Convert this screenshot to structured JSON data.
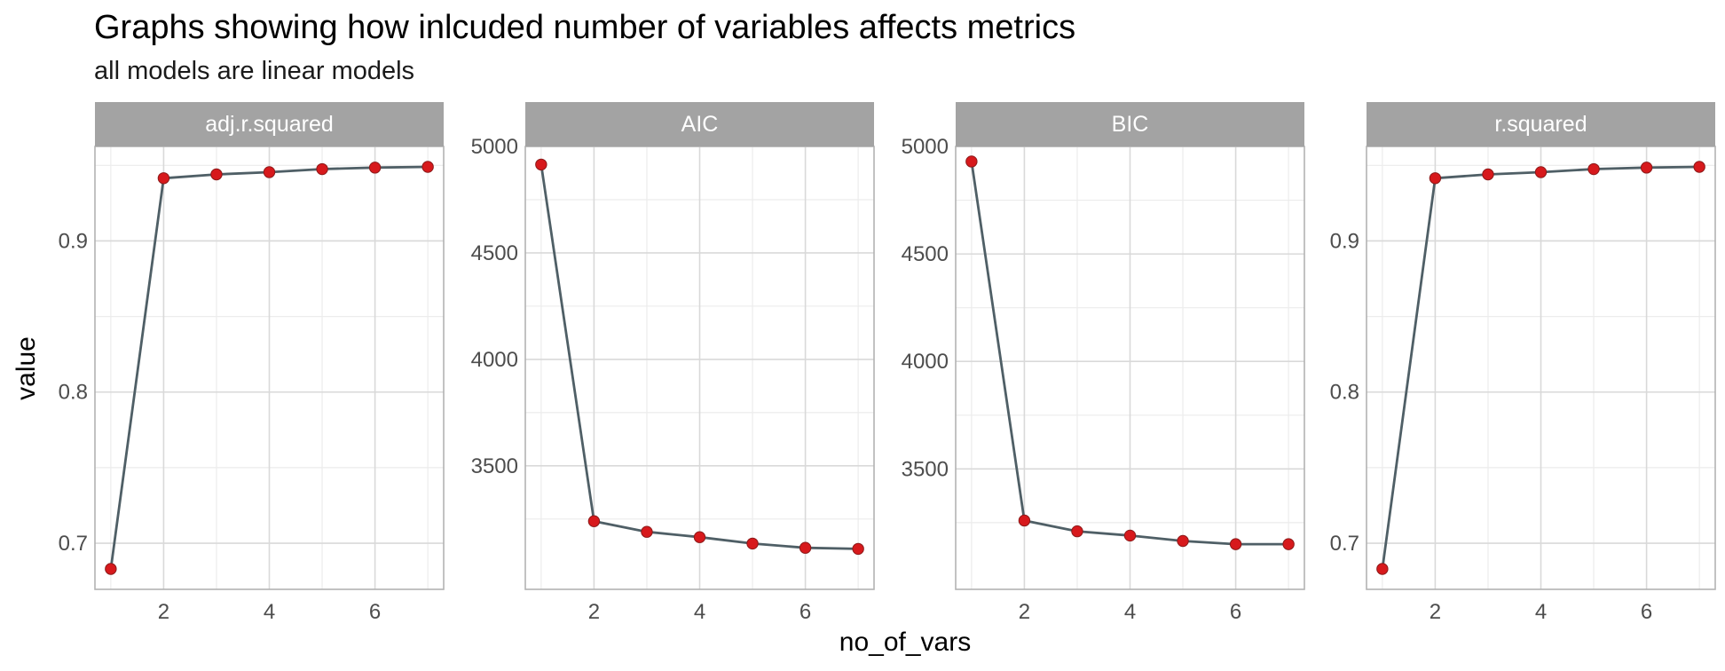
{
  "chart_data": {
    "type": "line",
    "title": "Graphs showing how inlcuded number of variables affects metrics",
    "subtitle": "all models are linear models",
    "xlabel": "no_of_vars",
    "ylabel": "value",
    "grid": true,
    "legend": "none",
    "colors": {
      "line": "#4f5f66",
      "point": "#d7191c",
      "point_edge": "#8b1a1a",
      "strip": "#a3a3a3",
      "panel_border": "#b3b3b3",
      "grid_major": "#d9d9d9",
      "grid_minor": "#ececec"
    },
    "panels": [
      {
        "name": "adj.r.squared",
        "x": [
          1,
          2,
          3,
          4,
          5,
          6,
          7
        ],
        "y": [
          0.683,
          0.9415,
          0.944,
          0.9455,
          0.9475,
          0.9485,
          0.949
        ],
        "xlim": [
          0.7,
          7.3
        ],
        "ylim": [
          0.6695,
          0.9625
        ],
        "x_ticks": [
          2,
          4,
          6
        ],
        "y_ticks": [
          0.7,
          0.8,
          0.9
        ],
        "y_tick_labels": [
          "0.7",
          "0.8",
          "0.9"
        ]
      },
      {
        "name": "AIC",
        "x": [
          1,
          2,
          3,
          4,
          5,
          6,
          7
        ],
        "y": [
          4915,
          3240,
          3190,
          3165,
          3135,
          3115,
          3110
        ],
        "xlim": [
          0.7,
          7.3
        ],
        "ylim": [
          2920,
          5000
        ],
        "x_ticks": [
          2,
          4,
          6
        ],
        "y_ticks": [
          3500,
          4000,
          4500,
          5000
        ],
        "y_tick_labels": [
          "3500",
          "4000",
          "4500",
          "5000"
        ]
      },
      {
        "name": "BIC",
        "x": [
          1,
          2,
          3,
          4,
          5,
          6,
          7
        ],
        "y": [
          4930,
          3260,
          3210,
          3190,
          3165,
          3150,
          3150
        ],
        "xlim": [
          0.7,
          7.3
        ],
        "ylim": [
          2940,
          5000
        ],
        "x_ticks": [
          2,
          4,
          6
        ],
        "y_ticks": [
          3500,
          4000,
          4500,
          5000
        ],
        "y_tick_labels": [
          "3500",
          "4000",
          "4500",
          "5000"
        ]
      },
      {
        "name": "r.squared",
        "x": [
          1,
          2,
          3,
          4,
          5,
          6,
          7
        ],
        "y": [
          0.683,
          0.9415,
          0.944,
          0.9455,
          0.9475,
          0.9485,
          0.949
        ],
        "xlim": [
          0.7,
          7.3
        ],
        "ylim": [
          0.6695,
          0.9625
        ],
        "x_ticks": [
          2,
          4,
          6
        ],
        "y_ticks": [
          0.7,
          0.8,
          0.9
        ],
        "y_tick_labels": [
          "0.7",
          "0.8",
          "0.9"
        ]
      }
    ]
  }
}
